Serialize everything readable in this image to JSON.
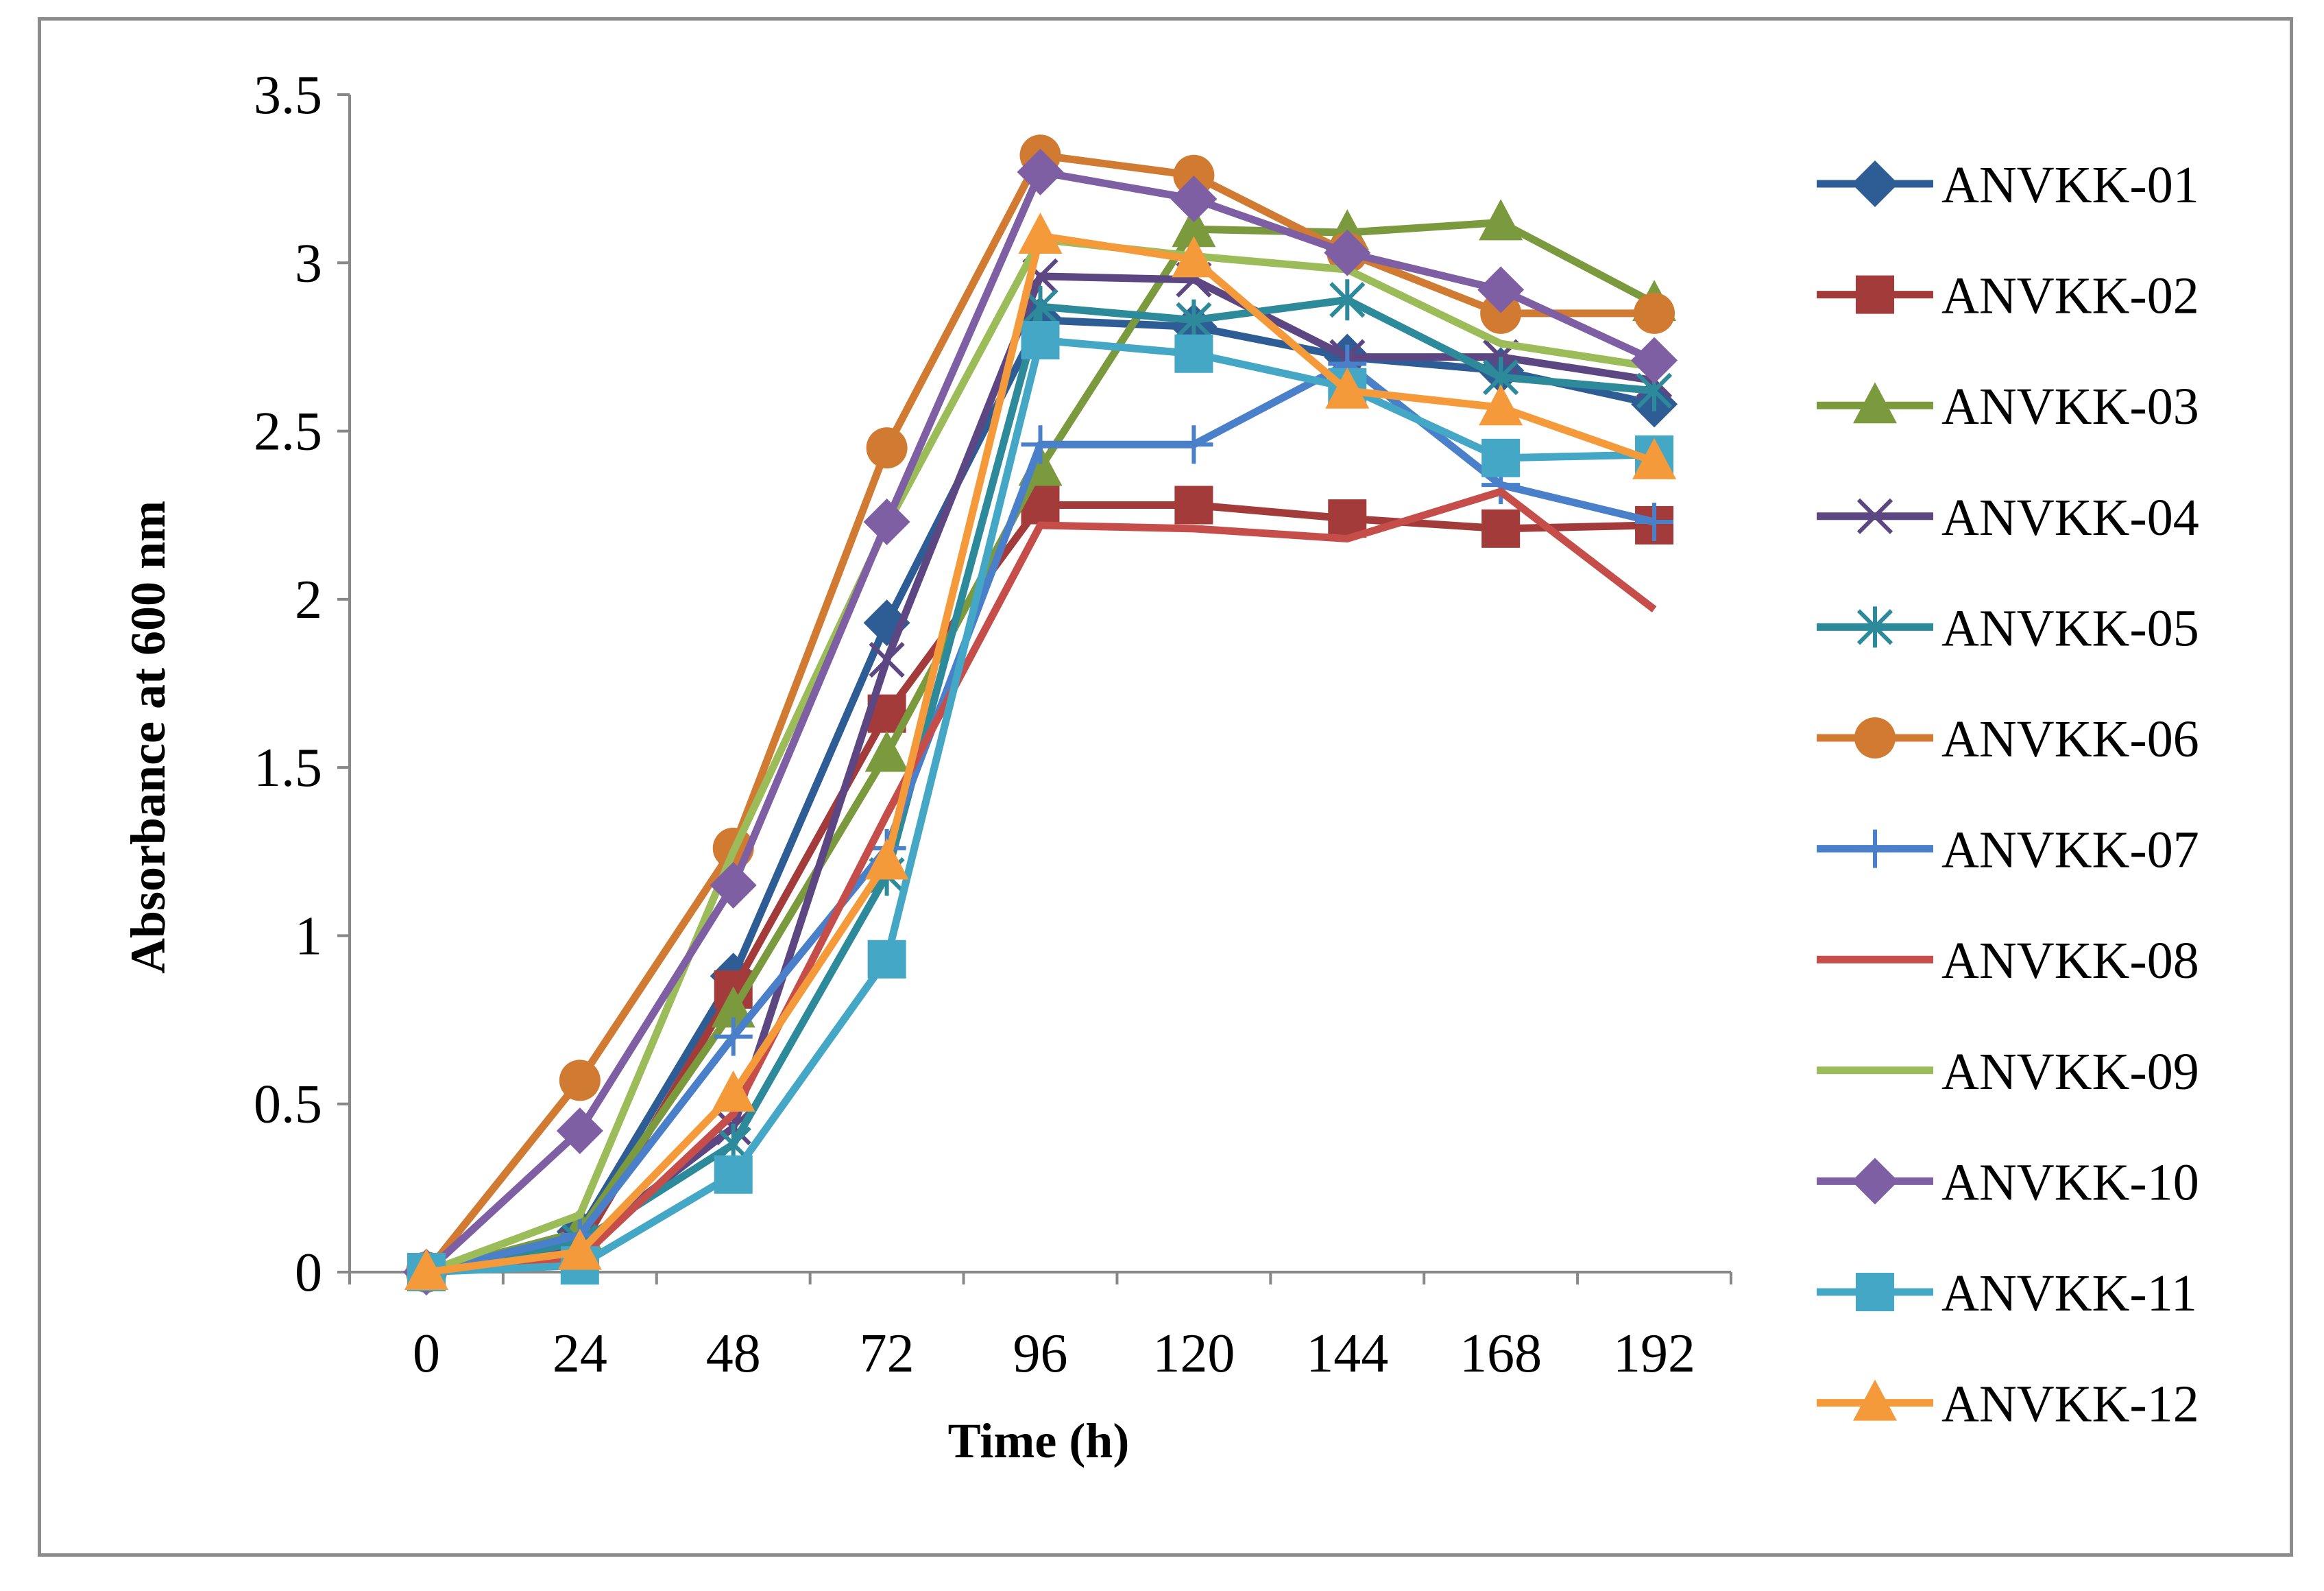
{
  "chart_data": {
    "type": "line",
    "title": "",
    "xlabel": "Time (h)",
    "ylabel": "Absorbance at 600 nm",
    "categories": [
      "0",
      "24",
      "48",
      "72",
      "96",
      "120",
      "144",
      "168",
      "192"
    ],
    "ylim": [
      0,
      3.5
    ],
    "yticks": [
      "0",
      "0.5",
      "1",
      "1.5",
      "2",
      "2.5",
      "3",
      "3.5"
    ],
    "grid": false,
    "legend_position": "right",
    "series": [
      {
        "name": "ANVKK-01",
        "color": "#2e5c94",
        "marker": "diamond",
        "values": [
          0,
          0.12,
          0.88,
          1.93,
          2.83,
          2.81,
          2.72,
          2.68,
          2.58
        ]
      },
      {
        "name": "ANVKK-02",
        "color": "#a33b3b",
        "marker": "square",
        "values": [
          0,
          0.07,
          0.84,
          1.66,
          2.28,
          2.28,
          2.24,
          2.21,
          2.22
        ]
      },
      {
        "name": "ANVKK-03",
        "color": "#7b9a3e",
        "marker": "triangle",
        "values": [
          0,
          0.12,
          0.78,
          1.54,
          2.39,
          3.1,
          3.09,
          3.12,
          2.88
        ]
      },
      {
        "name": "ANVKK-04",
        "color": "#5d4782",
        "marker": "x",
        "values": [
          0,
          0.08,
          0.43,
          1.82,
          2.96,
          2.95,
          2.72,
          2.72,
          2.65
        ]
      },
      {
        "name": "ANVKK-05",
        "color": "#2d8a9a",
        "marker": "asterisk",
        "values": [
          0,
          0.09,
          0.38,
          1.18,
          2.87,
          2.83,
          2.89,
          2.66,
          2.62
        ]
      },
      {
        "name": "ANVKK-06",
        "color": "#d17a32",
        "marker": "circle",
        "values": [
          0,
          0.57,
          1.26,
          2.45,
          3.32,
          3.26,
          3.03,
          2.85,
          2.85
        ]
      },
      {
        "name": "ANVKK-07",
        "color": "#4a7fc9",
        "marker": "plus",
        "values": [
          0,
          0.11,
          0.7,
          1.26,
          2.46,
          2.46,
          2.7,
          2.34,
          2.23
        ]
      },
      {
        "name": "ANVKK-08",
        "color": "#c64e4a",
        "marker": "none",
        "values": [
          0,
          0.04,
          0.47,
          1.36,
          2.22,
          2.21,
          2.18,
          2.32,
          1.97
        ]
      },
      {
        "name": "ANVKK-09",
        "color": "#9bbc59",
        "marker": "none",
        "values": [
          0,
          0.17,
          1.25,
          2.22,
          3.07,
          3.02,
          2.98,
          2.76,
          2.69
        ]
      },
      {
        "name": "ANVKK-10",
        "color": "#7e5fa4",
        "marker": "diamond",
        "values": [
          0,
          0.42,
          1.15,
          2.23,
          3.27,
          3.19,
          3.03,
          2.92,
          2.71
        ]
      },
      {
        "name": "ANVKK-11",
        "color": "#43a7c5",
        "marker": "square",
        "values": [
          0,
          0.02,
          0.29,
          0.93,
          2.77,
          2.73,
          2.63,
          2.42,
          2.43
        ]
      },
      {
        "name": "ANVKK-12",
        "color": "#f59a3a",
        "marker": "triangle",
        "values": [
          0,
          0.06,
          0.53,
          1.22,
          3.08,
          3.01,
          2.62,
          2.57,
          2.41
        ]
      }
    ]
  }
}
